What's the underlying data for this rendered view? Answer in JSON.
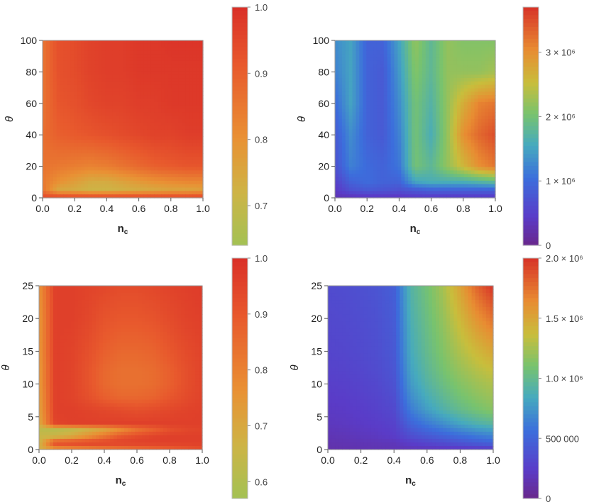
{
  "chart_data": [
    {
      "type": "heatmap",
      "xlabel": "n",
      "xlabel_sub": "c",
      "ylabel": "θ",
      "xlim": [
        0,
        1
      ],
      "ylim": [
        0,
        100
      ],
      "xticks": [
        "0.0",
        "0.2",
        "0.4",
        "0.6",
        "0.8",
        "1.0"
      ],
      "yticks": [
        "0",
        "20",
        "40",
        "60",
        "80",
        "100"
      ],
      "colormap": "Rainbow (olive-green to red)",
      "colorbar": {
        "range": [
          0.64,
          1.0
        ],
        "ticks": [
          "0.7",
          "0.8",
          "0.9",
          "1.0"
        ]
      },
      "x": [
        0,
        0.1,
        0.2,
        0.3,
        0.4,
        0.5,
        0.6,
        0.7,
        0.8,
        0.9,
        1.0
      ],
      "y": [
        0,
        5,
        10,
        20,
        40,
        60,
        80,
        100
      ],
      "z": [
        [
          0.95,
          0.96,
          0.96,
          0.96,
          0.96,
          0.96,
          0.96,
          0.96,
          0.96,
          0.96,
          0.96
        ],
        [
          0.86,
          0.75,
          0.74,
          0.72,
          0.72,
          0.73,
          0.74,
          0.75,
          0.76,
          0.76,
          0.77
        ],
        [
          0.85,
          0.8,
          0.77,
          0.74,
          0.74,
          0.76,
          0.78,
          0.8,
          0.81,
          0.82,
          0.82
        ],
        [
          0.86,
          0.85,
          0.84,
          0.83,
          0.84,
          0.86,
          0.88,
          0.9,
          0.91,
          0.92,
          0.92
        ],
        [
          0.87,
          0.9,
          0.91,
          0.92,
          0.93,
          0.94,
          0.95,
          0.96,
          0.96,
          0.97,
          0.97
        ],
        [
          0.86,
          0.92,
          0.93,
          0.95,
          0.96,
          0.96,
          0.97,
          0.97,
          0.98,
          0.98,
          0.98
        ],
        [
          0.86,
          0.93,
          0.94,
          0.96,
          0.97,
          0.97,
          0.98,
          0.98,
          0.98,
          0.98,
          0.98
        ],
        [
          0.86,
          0.93,
          0.94,
          0.96,
          0.97,
          0.97,
          0.98,
          0.98,
          0.99,
          0.99,
          0.99
        ]
      ]
    },
    {
      "type": "heatmap",
      "xlabel": "n",
      "xlabel_sub": "c",
      "ylabel": "θ",
      "xlim": [
        0,
        1
      ],
      "ylim": [
        0,
        100
      ],
      "xticks": [
        "0.0",
        "0.2",
        "0.4",
        "0.6",
        "0.8",
        "1.0"
      ],
      "yticks": [
        "0",
        "20",
        "40",
        "60",
        "80",
        "100"
      ],
      "colormap": "Rainbow (purple to red)",
      "colorbar": {
        "range": [
          0,
          3700000
        ],
        "ticks": [
          "0",
          "1 × 10⁶",
          "2 × 10⁶",
          "3 × 10⁶"
        ]
      },
      "x": [
        0,
        0.1,
        0.2,
        0.3,
        0.4,
        0.5,
        0.6,
        0.7,
        0.8,
        0.9,
        1.0
      ],
      "y": [
        0,
        5,
        10,
        20,
        40,
        60,
        80,
        100
      ],
      "z": [
        [
          300000,
          300000,
          350000,
          350000,
          350000,
          400000,
          400000,
          400000,
          400000,
          400000,
          400000
        ],
        [
          400000,
          700000,
          800000,
          750000,
          700000,
          800000,
          900000,
          900000,
          900000,
          900000,
          900000
        ],
        [
          500000,
          900000,
          1000000,
          900000,
          900000,
          1500000,
          1600000,
          1600000,
          1600000,
          1700000,
          1800000
        ],
        [
          700000,
          1200000,
          1000000,
          900000,
          1100000,
          2000000,
          1800000,
          2200000,
          2600000,
          3000000,
          3200000
        ],
        [
          800000,
          1300000,
          900000,
          800000,
          1200000,
          2000000,
          1600000,
          2200000,
          3000000,
          3300000,
          3500000
        ],
        [
          1000000,
          1500000,
          900000,
          800000,
          1300000,
          2000000,
          1700000,
          2200000,
          2700000,
          3100000,
          3200000
        ],
        [
          1200000,
          1500000,
          900000,
          800000,
          1400000,
          2100000,
          1800000,
          2200000,
          2200000,
          2200000,
          2300000
        ],
        [
          1300000,
          1500000,
          900000,
          900000,
          1500000,
          2200000,
          1800000,
          2200000,
          2100000,
          2100000,
          2100000
        ]
      ]
    },
    {
      "type": "heatmap",
      "xlabel": "n",
      "xlabel_sub": "c",
      "ylabel": "θ",
      "xlim": [
        0,
        1
      ],
      "ylim": [
        0,
        25
      ],
      "xticks": [
        "0.0",
        "0.2",
        "0.4",
        "0.6",
        "0.8",
        "1.0"
      ],
      "yticks": [
        "0",
        "5",
        "10",
        "15",
        "20",
        "25"
      ],
      "colormap": "Rainbow (olive-green to red)",
      "colorbar": {
        "range": [
          0.57,
          1.0
        ],
        "ticks": [
          "0.6",
          "0.7",
          "0.8",
          "0.9",
          "1.0"
        ]
      },
      "x": [
        0,
        0.1,
        0.2,
        0.3,
        0.4,
        0.5,
        0.6,
        0.7,
        0.8,
        0.9,
        1.0
      ],
      "y": [
        0,
        1,
        2,
        3,
        4,
        6,
        8,
        10,
        12,
        15,
        20,
        25
      ],
      "z": [
        [
          0.68,
          0.74,
          0.76,
          0.78,
          0.8,
          0.82,
          0.84,
          0.86,
          0.88,
          0.9,
          0.92
        ],
        [
          0.66,
          0.94,
          0.95,
          0.96,
          0.96,
          0.96,
          0.96,
          0.96,
          0.96,
          0.96,
          0.96
        ],
        [
          0.65,
          0.66,
          0.7,
          0.76,
          0.83,
          0.9,
          0.93,
          0.95,
          0.96,
          0.96,
          0.96
        ],
        [
          0.63,
          0.62,
          0.64,
          0.68,
          0.72,
          0.78,
          0.84,
          0.88,
          0.92,
          0.94,
          0.95
        ],
        [
          0.7,
          0.95,
          0.96,
          0.96,
          0.96,
          0.96,
          0.96,
          0.96,
          0.96,
          0.96,
          0.96
        ],
        [
          0.72,
          0.96,
          0.96,
          0.95,
          0.94,
          0.93,
          0.92,
          0.93,
          0.94,
          0.95,
          0.96
        ],
        [
          0.73,
          0.96,
          0.95,
          0.92,
          0.88,
          0.86,
          0.86,
          0.87,
          0.9,
          0.93,
          0.95
        ],
        [
          0.74,
          0.96,
          0.95,
          0.91,
          0.86,
          0.84,
          0.84,
          0.85,
          0.88,
          0.92,
          0.95
        ],
        [
          0.74,
          0.96,
          0.95,
          0.91,
          0.86,
          0.84,
          0.84,
          0.85,
          0.88,
          0.92,
          0.95
        ],
        [
          0.75,
          0.96,
          0.95,
          0.92,
          0.88,
          0.86,
          0.86,
          0.87,
          0.9,
          0.93,
          0.95
        ],
        [
          0.75,
          0.96,
          0.96,
          0.94,
          0.91,
          0.9,
          0.9,
          0.91,
          0.93,
          0.95,
          0.96
        ],
        [
          0.76,
          0.96,
          0.96,
          0.95,
          0.94,
          0.93,
          0.93,
          0.94,
          0.95,
          0.96,
          0.97
        ]
      ]
    },
    {
      "type": "heatmap",
      "xlabel": "n",
      "xlabel_sub": "c",
      "ylabel": "θ",
      "xlim": [
        0,
        1
      ],
      "ylim": [
        0,
        25
      ],
      "xticks": [
        "0.0",
        "0.2",
        "0.4",
        "0.6",
        "0.8",
        "1.0"
      ],
      "yticks": [
        "0",
        "5",
        "10",
        "15",
        "20",
        "25"
      ],
      "colormap": "Rainbow (purple to red)",
      "colorbar": {
        "range": [
          0,
          2000000
        ],
        "ticks": [
          "0",
          "500 000",
          "1.0 × 10⁶",
          "1.5 × 10⁶",
          "2.0 × 10⁶"
        ]
      },
      "x": [
        0,
        0.1,
        0.2,
        0.3,
        0.4,
        0.5,
        0.6,
        0.7,
        0.8,
        0.9,
        1.0
      ],
      "y": [
        0,
        1,
        2,
        3,
        4,
        6,
        8,
        10,
        12,
        15,
        20,
        25
      ],
      "z": [
        [
          120000,
          130000,
          140000,
          150000,
          160000,
          170000,
          180000,
          190000,
          200000,
          210000,
          220000
        ],
        [
          140000,
          150000,
          160000,
          170000,
          180000,
          250000,
          300000,
          350000,
          400000,
          450000,
          500000
        ],
        [
          160000,
          170000,
          190000,
          210000,
          240000,
          350000,
          420000,
          480000,
          540000,
          600000,
          650000
        ],
        [
          180000,
          190000,
          210000,
          230000,
          260000,
          420000,
          520000,
          600000,
          680000,
          750000,
          800000
        ],
        [
          200000,
          210000,
          230000,
          250000,
          280000,
          500000,
          620000,
          720000,
          820000,
          900000,
          960000
        ],
        [
          220000,
          230000,
          250000,
          280000,
          320000,
          620000,
          780000,
          900000,
          1000000,
          1080000,
          1150000
        ],
        [
          240000,
          250000,
          270000,
          300000,
          350000,
          700000,
          860000,
          980000,
          1080000,
          1160000,
          1220000
        ],
        [
          260000,
          270000,
          290000,
          320000,
          380000,
          760000,
          920000,
          1040000,
          1140000,
          1220000,
          1280000
        ],
        [
          280000,
          290000,
          310000,
          340000,
          400000,
          800000,
          960000,
          1090000,
          1200000,
          1290000,
          1360000
        ],
        [
          300000,
          310000,
          330000,
          360000,
          420000,
          840000,
          1000000,
          1140000,
          1280000,
          1400000,
          1500000
        ],
        [
          320000,
          330000,
          350000,
          380000,
          440000,
          880000,
          1040000,
          1200000,
          1400000,
          1600000,
          1750000
        ],
        [
          340000,
          350000,
          370000,
          400000,
          460000,
          920000,
          1080000,
          1260000,
          1520000,
          1800000,
          2000000
        ]
      ]
    }
  ]
}
